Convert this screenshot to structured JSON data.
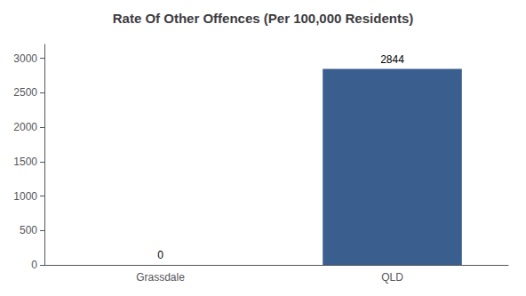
{
  "chart_data": {
    "type": "bar",
    "title": "Rate Of Other Offences (Per 100,000 Residents)",
    "categories": [
      "Grassdale",
      "QLD"
    ],
    "values": [
      0,
      2844
    ],
    "color": "#3a5f8f",
    "ylim": [
      0,
      3200
    ],
    "yticks": [
      0,
      500,
      1000,
      1500,
      2000,
      2500,
      3000
    ],
    "grid": false,
    "data_labels": true
  }
}
